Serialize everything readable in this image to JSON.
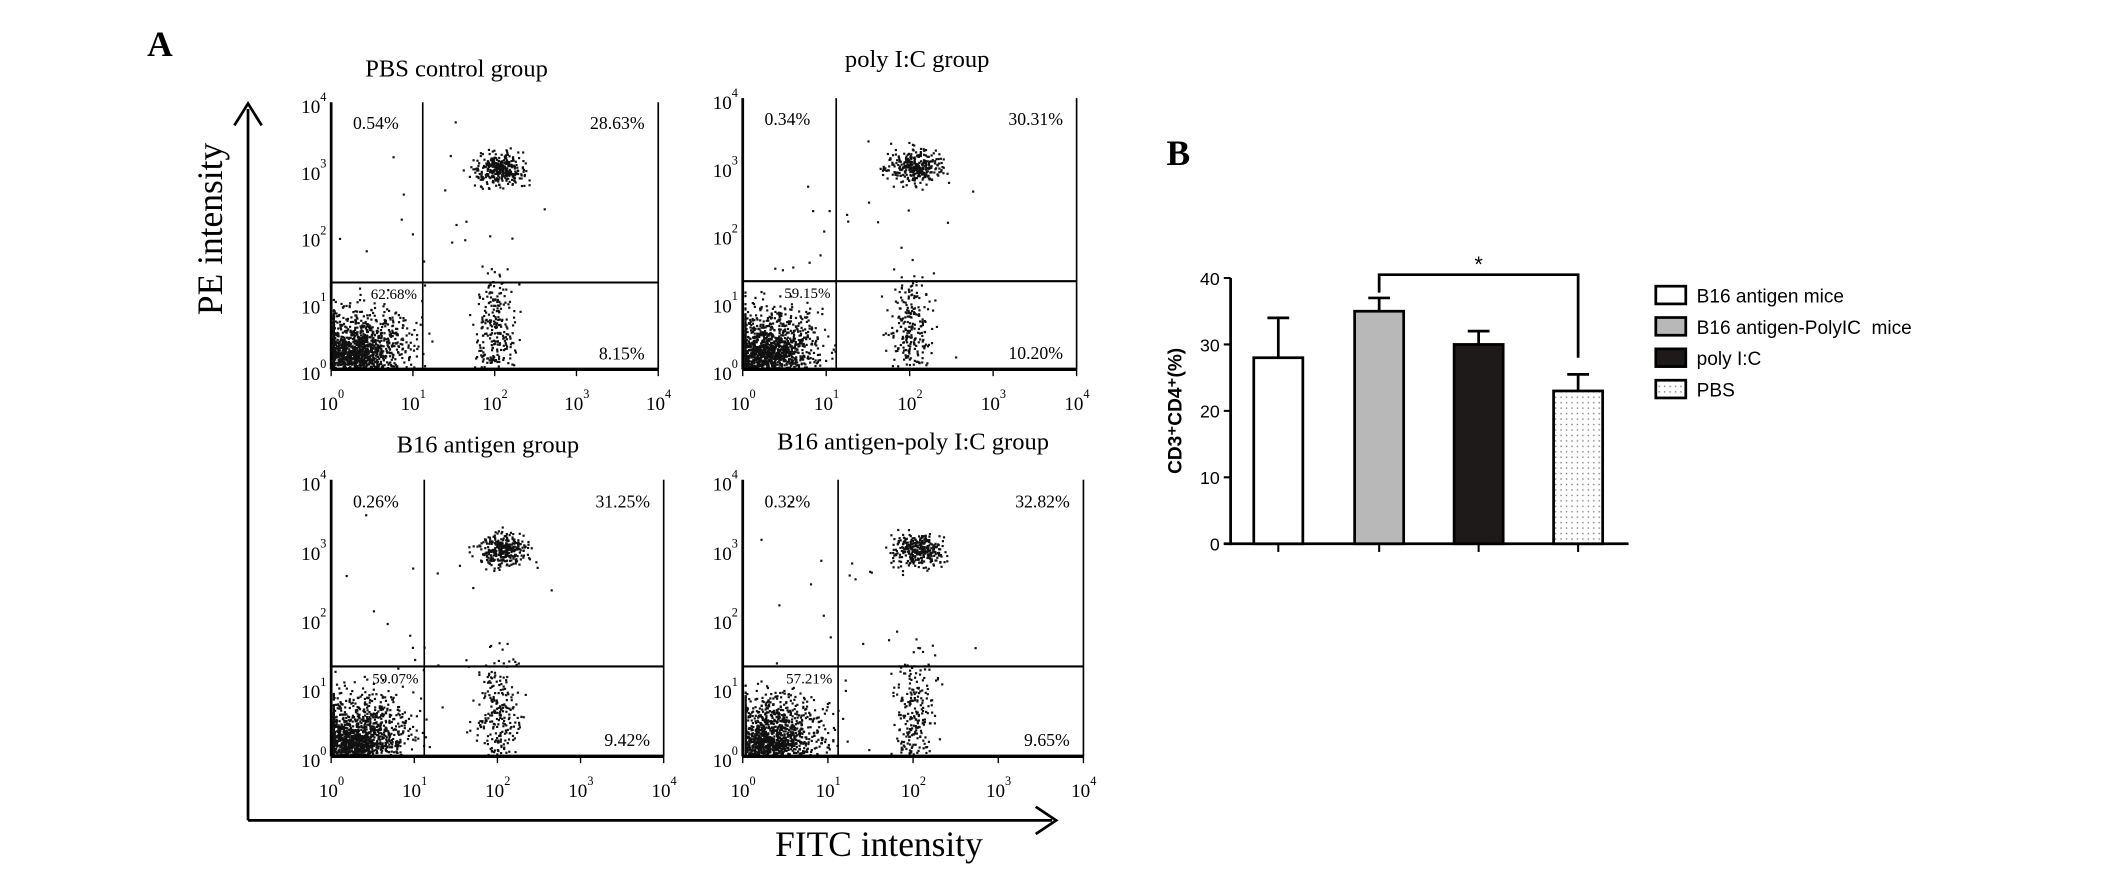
{
  "panel_a": {
    "label": "A",
    "y_axis_title": "PE intensity",
    "x_axis_title": "FITC intensity"
  },
  "panel_b": {
    "label": "B"
  },
  "chart_data": [
    {
      "type": "scatter",
      "title": "PBS control group",
      "xlabel": "FITC intensity",
      "ylabel": "PE intensity",
      "xscale": "log",
      "yscale": "log",
      "xlim": [
        1,
        10000
      ],
      "ylim": [
        1,
        10000
      ],
      "tick_labels": [
        "0",
        "1",
        "2",
        "3",
        "4"
      ],
      "quadrants": {
        "upper_left": "0.54%",
        "upper_right": "28.63%",
        "lower_left": "62.68%",
        "lower_right": "8.15%"
      }
    },
    {
      "type": "scatter",
      "title": "poly I:C group",
      "xlabel": "FITC intensity",
      "ylabel": "PE intensity",
      "xscale": "log",
      "yscale": "log",
      "xlim": [
        1,
        10000
      ],
      "ylim": [
        1,
        10000
      ],
      "tick_labels": [
        "0",
        "1",
        "2",
        "3",
        "4"
      ],
      "quadrants": {
        "upper_left": "0.34%",
        "upper_right": "30.31%",
        "lower_left": "59.15%",
        "lower_right": "10.20%"
      }
    },
    {
      "type": "scatter",
      "title": "B16 antigen group",
      "xlabel": "FITC intensity",
      "ylabel": "PE intensity",
      "xscale": "log",
      "yscale": "log",
      "xlim": [
        1,
        10000
      ],
      "ylim": [
        1,
        10000
      ],
      "tick_labels": [
        "0",
        "1",
        "2",
        "3",
        "4"
      ],
      "quadrants": {
        "upper_left": "0.26%",
        "upper_right": "31.25%",
        "lower_left": "59.07%",
        "lower_right": "9.42%"
      }
    },
    {
      "type": "scatter",
      "title": "B16 antigen-poly I:C group",
      "xlabel": "FITC intensity",
      "ylabel": "PE intensity",
      "xscale": "log",
      "yscale": "log",
      "xlim": [
        1,
        10000
      ],
      "ylim": [
        1,
        10000
      ],
      "tick_labels": [
        "0",
        "1",
        "2",
        "3",
        "4"
      ],
      "quadrants": {
        "upper_left": "0.32%",
        "upper_right": "32.82%",
        "lower_left": "57.21%",
        "lower_right": "9.65%"
      }
    },
    {
      "type": "bar",
      "title": "",
      "xlabel": "",
      "ylabel": "CD3⁺CD4⁺(%)",
      "ylim": [
        0,
        40
      ],
      "yticks": [
        "0",
        "10",
        "20",
        "30",
        "40"
      ],
      "categories": [
        "B16 antigen mice",
        "B16 antigen-PolyIC  mice",
        "poly I:C",
        "PBS"
      ],
      "values": [
        28,
        35,
        30,
        23
      ],
      "errors": [
        6,
        2,
        2,
        2.5
      ],
      "fills": [
        "#ffffff",
        "#b8b8b8",
        "#1e1a1a",
        "dotted"
      ],
      "significance": {
        "between": [
          1,
          3
        ],
        "label": "*"
      },
      "legend": "right"
    }
  ]
}
